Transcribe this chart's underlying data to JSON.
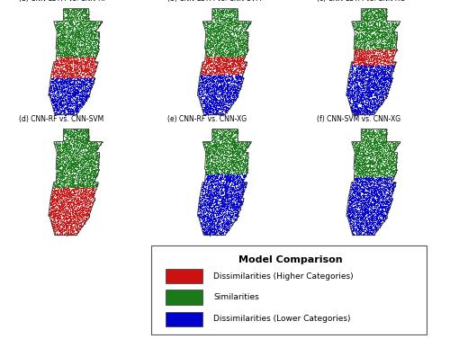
{
  "subplots": [
    {
      "title": "(a) CNN-LSTM vs. CNN-RF",
      "zones": [
        {
          "color": "#1a7a1a",
          "y_min": 0.55,
          "y_max": 1.0
        },
        {
          "color": "#cc1111",
          "y_min": 0.35,
          "y_max": 0.55
        },
        {
          "color": "#0000cc",
          "y_min": 0.0,
          "y_max": 0.35
        }
      ]
    },
    {
      "title": "(b) CNN-LSTM vs. CNN-SVM",
      "zones": [
        {
          "color": "#1a7a1a",
          "y_min": 0.55,
          "y_max": 1.0
        },
        {
          "color": "#cc1111",
          "y_min": 0.38,
          "y_max": 0.55
        },
        {
          "color": "#0000cc",
          "y_min": 0.0,
          "y_max": 0.38
        }
      ]
    },
    {
      "title": "(c) CNN-LSTM vs. CNN-XG",
      "zones": [
        {
          "color": "#1a7a1a",
          "y_min": 0.62,
          "y_max": 1.0
        },
        {
          "color": "#cc1111",
          "y_min": 0.47,
          "y_max": 0.62
        },
        {
          "color": "#0000cc",
          "y_min": 0.0,
          "y_max": 0.47
        }
      ]
    },
    {
      "title": "(d) CNN-RF vs. CNN-SVM",
      "zones": [
        {
          "color": "#1a7a1a",
          "y_min": 0.45,
          "y_max": 1.0
        },
        {
          "color": "#cc1111",
          "y_min": 0.0,
          "y_max": 0.45
        }
      ]
    },
    {
      "title": "(e) CNN-RF vs. CNN-XG",
      "zones": [
        {
          "color": "#1a7a1a",
          "y_min": 0.58,
          "y_max": 1.0
        },
        {
          "color": "#0000cc",
          "y_min": 0.0,
          "y_max": 0.58
        }
      ]
    },
    {
      "title": "(f) CNN-SVM vs. CNN-XG",
      "zones": [
        {
          "color": "#1a7a1a",
          "y_min": 0.55,
          "y_max": 1.0
        },
        {
          "color": "#0000cc",
          "y_min": 0.0,
          "y_max": 0.55
        }
      ]
    }
  ],
  "legend_title": "Model Comparison",
  "legend_items": [
    {
      "label": "Dissimilarities (Higher Categories)",
      "color": "#cc1111"
    },
    {
      "label": "Similarities",
      "color": "#1a7a1a"
    },
    {
      "label": "Dissimilarities (Lower Categories)",
      "color": "#0000cc"
    }
  ],
  "background_color": "#ffffff",
  "title_fontsize": 5.5,
  "legend_title_fontsize": 8,
  "legend_fontsize": 6.5,
  "n_points": 6000
}
